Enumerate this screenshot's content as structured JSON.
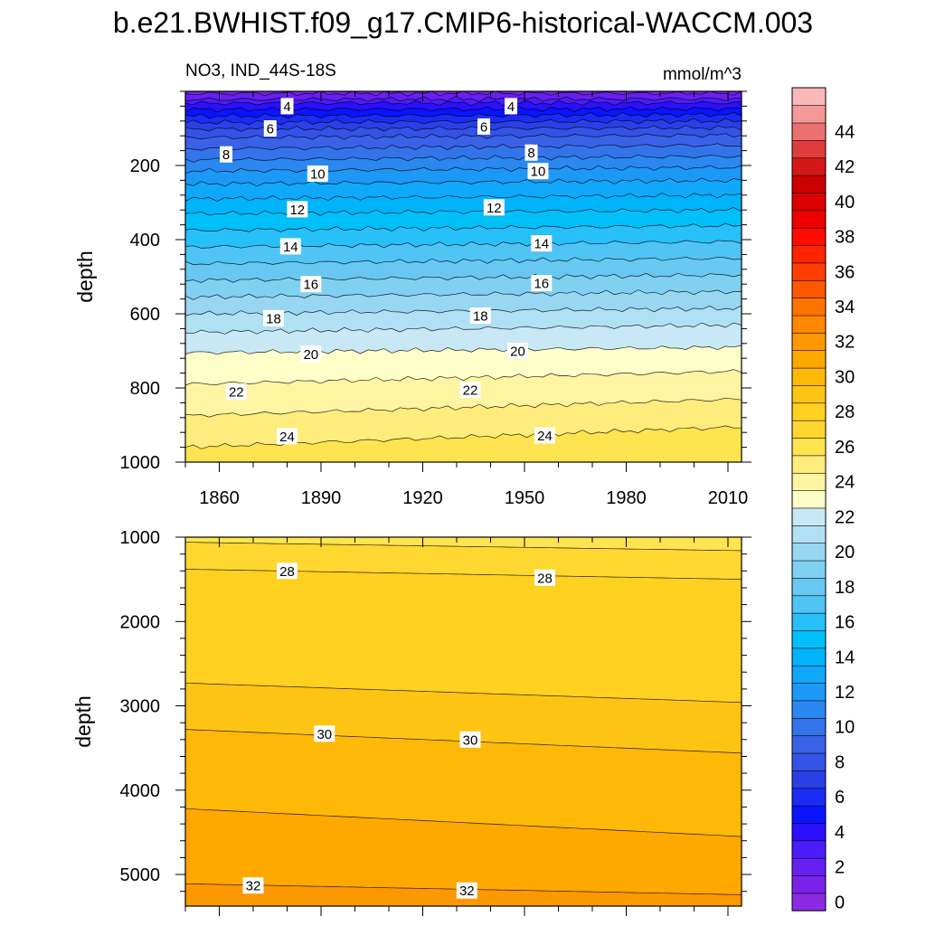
{
  "chart_data": {
    "type": "heatmap",
    "title": "b.e21.BWHIST.f09_g17.CMIP6-historical-WACCM.003",
    "subtitle_left": "NO3, IND_44S-18S",
    "units": "mmol/m^3",
    "x_range": [
      1850,
      2014
    ],
    "x_ticks": [
      1860,
      1890,
      1920,
      1950,
      1980,
      2010
    ],
    "x_tick_labels": [
      "1860",
      "1890",
      "1920",
      "1950",
      "1980",
      "2010"
    ],
    "panels": [
      {
        "name": "upper",
        "ylabel": "depth",
        "ylim": [
          0,
          1000
        ],
        "y_ticks": [
          200,
          400,
          600,
          800,
          1000
        ],
        "y_tick_labels": [
          "200",
          "400",
          "600",
          "800",
          "1000"
        ],
        "contour_levels": [
          2,
          3,
          4,
          5,
          6,
          7,
          8,
          9,
          10,
          11,
          12,
          13,
          14,
          15,
          16,
          17,
          18,
          19,
          20,
          21,
          22,
          23,
          24,
          25,
          26
        ],
        "depth_at_start": [
          6,
          22,
          32,
          49,
          67,
          84,
          102,
          125,
          155,
          185,
          215,
          250,
          290,
          330,
          375,
          420,
          465,
          510,
          555,
          600,
          650,
          705,
          790,
          875,
          960
        ],
        "depth_at_end": [
          5,
          20,
          31,
          47,
          63,
          80,
          98,
          118,
          145,
          175,
          205,
          240,
          280,
          320,
          362,
          405,
          450,
          495,
          540,
          585,
          630,
          690,
          755,
          830,
          905
        ],
        "contour_labels": [
          {
            "text": "4",
            "x": 1880,
            "depth": 40
          },
          {
            "text": "4",
            "x": 1946,
            "depth": 40
          },
          {
            "text": "6",
            "x": 1875,
            "depth": 100
          },
          {
            "text": "6",
            "x": 1938,
            "depth": 95
          },
          {
            "text": "8",
            "x": 1862,
            "depth": 170
          },
          {
            "text": "8",
            "x": 1952,
            "depth": 165
          },
          {
            "text": "10",
            "x": 1889,
            "depth": 222
          },
          {
            "text": "10",
            "x": 1954,
            "depth": 215
          },
          {
            "text": "12",
            "x": 1883,
            "depth": 318
          },
          {
            "text": "12",
            "x": 1941,
            "depth": 313
          },
          {
            "text": "14",
            "x": 1881,
            "depth": 418
          },
          {
            "text": "14",
            "x": 1955,
            "depth": 410
          },
          {
            "text": "16",
            "x": 1887,
            "depth": 520
          },
          {
            "text": "16",
            "x": 1955,
            "depth": 517
          },
          {
            "text": "18",
            "x": 1876,
            "depth": 612
          },
          {
            "text": "18",
            "x": 1937,
            "depth": 605
          },
          {
            "text": "20",
            "x": 1887,
            "depth": 708
          },
          {
            "text": "20",
            "x": 1948,
            "depth": 700
          },
          {
            "text": "22",
            "x": 1865,
            "depth": 810
          },
          {
            "text": "22",
            "x": 1934,
            "depth": 805
          },
          {
            "text": "24",
            "x": 1880,
            "depth": 930
          },
          {
            "text": "24",
            "x": 1956,
            "depth": 928
          }
        ]
      },
      {
        "name": "lower",
        "ylabel": "depth",
        "ylim": [
          1000,
          5375
        ],
        "y_ticks": [
          1000,
          2000,
          3000,
          4000,
          5000
        ],
        "y_tick_labels": [
          "1000",
          "2000",
          "3000",
          "4000",
          "5000"
        ],
        "contour_levels": [
          27,
          28,
          29,
          30,
          31,
          32
        ],
        "depth_at_start": [
          1060,
          1380,
          2730,
          3280,
          4220,
          5110
        ],
        "depth_at_end": [
          1160,
          1500,
          2960,
          3560,
          4550,
          5240
        ],
        "contour_labels": [
          {
            "text": "28",
            "x": 1880,
            "depth": 1400
          },
          {
            "text": "28",
            "x": 1956,
            "depth": 1480
          },
          {
            "text": "30",
            "x": 1891,
            "depth": 3330
          },
          {
            "text": "30",
            "x": 1934,
            "depth": 3400
          },
          {
            "text": "32",
            "x": 1870,
            "depth": 5130
          },
          {
            "text": "32",
            "x": 1933,
            "depth": 5190
          }
        ]
      }
    ],
    "colorbar": {
      "levels": [
        0,
        1,
        2,
        3,
        4,
        5,
        6,
        7,
        8,
        9,
        10,
        11,
        12,
        13,
        14,
        15,
        16,
        17,
        18,
        19,
        20,
        21,
        22,
        23,
        24,
        25,
        26,
        27,
        28,
        29,
        30,
        31,
        32,
        33,
        34,
        35,
        36,
        37,
        38,
        39,
        40,
        41,
        42,
        43,
        44,
        45,
        46
      ],
      "tick_labels": [
        "0",
        "2",
        "4",
        "6",
        "8",
        "10",
        "12",
        "14",
        "16",
        "18",
        "20",
        "22",
        "24",
        "26",
        "28",
        "30",
        "32",
        "34",
        "36",
        "38",
        "40",
        "42",
        "44"
      ],
      "colors": [
        "#8a2be2",
        "#7a22ea",
        "#6620f2",
        "#4c1cf8",
        "#2a10ff",
        "#0a14ff",
        "#1a2cf2",
        "#2a40e6",
        "#3452e6",
        "#3a62e8",
        "#3474ea",
        "#2a88f0",
        "#1c98f6",
        "#10a8fb",
        "#00b4fb",
        "#00c0fa",
        "#28c0f8",
        "#50c4f4",
        "#68c8f2",
        "#80d0f2",
        "#98d6f2",
        "#b0e0f4",
        "#c8e8f6",
        "#fefec8",
        "#fef4a2",
        "#feec7c",
        "#fee450",
        "#fed830",
        "#fed020",
        "#fec414",
        "#feb808",
        "#fea800",
        "#fe9800",
        "#fe8800",
        "#fe7200",
        "#fe5800",
        "#fe3e00",
        "#fe2400",
        "#fe0c00",
        "#ee0000",
        "#dc0000",
        "#cc0000",
        "#d41818",
        "#e03c3c",
        "#ec7070",
        "#f49898",
        "#fcb8b8"
      ]
    }
  }
}
